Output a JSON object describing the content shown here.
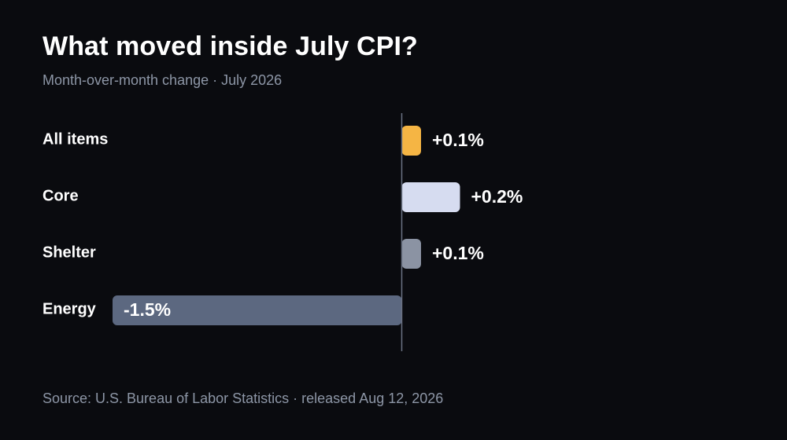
{
  "header": {
    "title": "What moved inside July CPI?",
    "subtitle": "Month-over-month change · July 2026"
  },
  "footer": {
    "source": "Source: U.S. Bureau of Labor Statistics · released Aug 12, 2026"
  },
  "chart_data": {
    "type": "bar",
    "orientation": "horizontal",
    "title": "What moved inside July CPI?",
    "subtitle": "Month-over-month change · July 2026",
    "categories": [
      "All items",
      "Core",
      "Shelter",
      "Energy"
    ],
    "values": [
      0.1,
      0.2,
      0.1,
      -1.5
    ],
    "labels": [
      "+0.1%",
      "+0.2%",
      "+0.1%",
      "-1.5%"
    ],
    "colors": [
      "#f5b544",
      "#d6dcf0",
      "#8b93a3",
      "#5c6880"
    ],
    "xlim": [
      -1.5,
      0.2
    ],
    "xlabel": "",
    "ylabel": "",
    "grid": false,
    "legend": "none",
    "baseline": 0
  }
}
